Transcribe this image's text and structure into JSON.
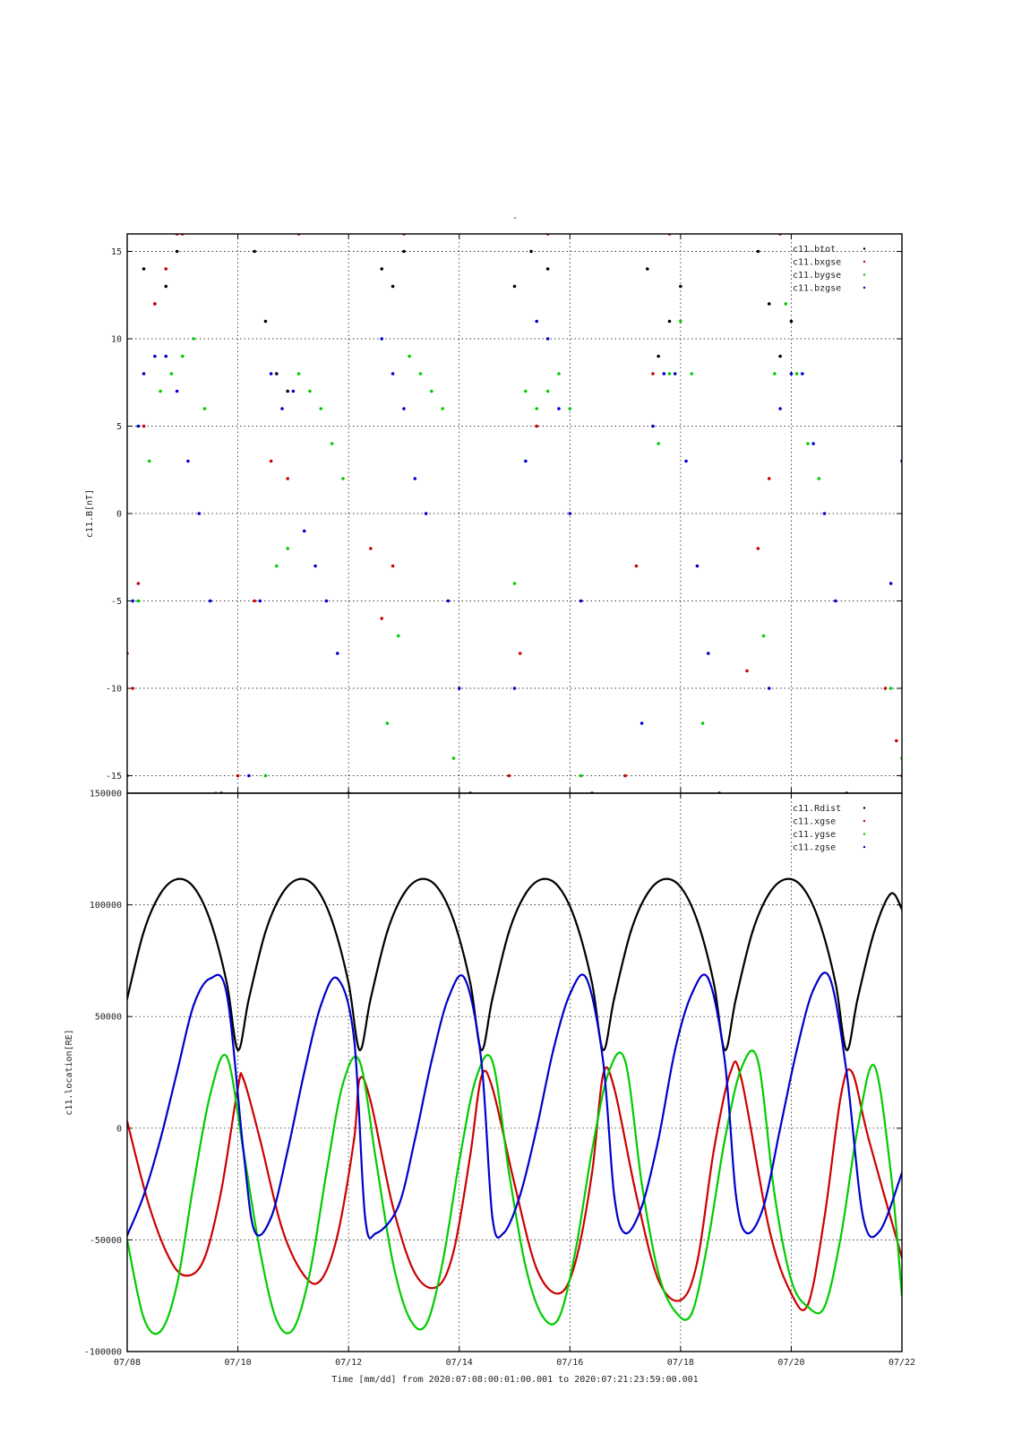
{
  "title": "-",
  "x_axis": {
    "label": "Time [mm/dd]  from 2020:07:08:00:01:00.001  to  2020:07:21:23:59:00.001",
    "tick_labels": [
      "07/08",
      "07/10",
      "07/12",
      "07/14",
      "07/16",
      "07/18",
      "07/20",
      "07/22"
    ],
    "tick_days": [
      0,
      2,
      4,
      6,
      8,
      10,
      12,
      14
    ],
    "range_days": [
      0,
      14
    ]
  },
  "chart_data": [
    {
      "type": "scatter",
      "ylabel": "c11.B[nT]",
      "ylim": [
        -16,
        16
      ],
      "yticks": [
        15,
        10,
        5,
        0,
        -5,
        -10,
        -15
      ],
      "grid": true,
      "legend_position": "top-right",
      "x_units": "days since 2020-07-08 00:01",
      "series": [
        {
          "name": "c11.btot",
          "color": "#000000",
          "x": [
            0.3,
            0.5,
            0.7,
            0.9,
            2.3,
            2.5,
            2.7,
            2.9,
            4.6,
            4.8,
            5.0,
            7.0,
            7.3,
            7.6,
            9.4,
            9.6,
            9.8,
            10.0,
            11.4,
            11.6,
            11.8,
            12.0
          ],
          "y": [
            14,
            12,
            13,
            15,
            15,
            11,
            8,
            7,
            14,
            13,
            15,
            13,
            15,
            14,
            14,
            9,
            11,
            13,
            15,
            12,
            9,
            11
          ]
        },
        {
          "name": "c11.bxgse",
          "color": "#cc0000",
          "x": [
            0.0,
            0.1,
            0.2,
            0.3,
            0.5,
            0.7,
            0.9,
            1.0,
            2.0,
            2.3,
            2.6,
            2.9,
            3.1,
            4.4,
            4.6,
            4.8,
            5.0,
            6.9,
            7.1,
            7.4,
            7.6,
            9.0,
            9.2,
            9.5,
            9.8,
            11.2,
            11.4,
            11.6,
            11.8,
            13.7,
            13.9,
            14.0
          ],
          "y": [
            -8,
            -10,
            -4,
            5,
            12,
            14,
            16,
            16,
            -15,
            -5,
            3,
            2,
            16,
            -2,
            -6,
            -3,
            16,
            -15,
            -8,
            5,
            16,
            -15,
            -3,
            8,
            16,
            -9,
            -2,
            2,
            16,
            -10,
            -13,
            -15
          ]
        },
        {
          "name": "c11.bygse",
          "color": "#00cc00",
          "x": [
            0.2,
            0.4,
            0.6,
            0.8,
            1.0,
            1.2,
            1.4,
            1.6,
            2.5,
            2.7,
            2.9,
            3.1,
            3.3,
            3.5,
            3.7,
            3.9,
            4.7,
            4.9,
            5.1,
            5.3,
            5.5,
            5.7,
            5.9,
            7.0,
            7.2,
            7.4,
            7.6,
            7.8,
            8.0,
            8.2,
            9.6,
            9.8,
            10.0,
            10.2,
            10.4,
            11.5,
            11.7,
            11.9,
            12.1,
            12.3,
            12.5,
            13.8,
            14.0
          ],
          "y": [
            -5,
            3,
            7,
            8,
            9,
            10,
            6,
            -16,
            -15,
            -3,
            -2,
            8,
            7,
            6,
            4,
            2,
            -12,
            -7,
            9,
            8,
            7,
            6,
            -14,
            -4,
            7,
            6,
            7,
            8,
            6,
            -15,
            4,
            8,
            11,
            8,
            -12,
            -7,
            8,
            12,
            8,
            4,
            2,
            -10,
            -14
          ]
        },
        {
          "name": "c11.bzgse",
          "color": "#0000cc",
          "x": [
            0.0,
            0.1,
            0.2,
            0.3,
            0.5,
            0.7,
            0.9,
            1.1,
            1.3,
            1.5,
            1.7,
            2.2,
            2.4,
            2.6,
            2.8,
            3.0,
            3.2,
            3.4,
            3.6,
            3.8,
            4.0,
            4.6,
            4.8,
            5.0,
            5.2,
            5.4,
            5.8,
            6.0,
            6.2,
            7.0,
            7.2,
            7.4,
            7.6,
            7.8,
            8.0,
            8.2,
            8.4,
            9.3,
            9.5,
            9.7,
            9.9,
            10.1,
            10.3,
            10.5,
            10.7,
            11.6,
            11.8,
            12.0,
            12.2,
            12.4,
            12.6,
            12.8,
            13.0,
            13.8,
            14.0
          ],
          "y": [
            -15,
            -5,
            5,
            8,
            9,
            9,
            7,
            3,
            0,
            -5,
            -16,
            -15,
            -5,
            8,
            6,
            7,
            -1,
            -3,
            -5,
            -8,
            -16,
            10,
            8,
            6,
            2,
            0,
            -5,
            -10,
            -16,
            -10,
            3,
            11,
            10,
            6,
            0,
            -5,
            -16,
            -12,
            5,
            8,
            8,
            3,
            -3,
            -8,
            -16,
            -10,
            6,
            8,
            8,
            4,
            0,
            -5,
            -16,
            -4,
            3
          ]
        }
      ]
    },
    {
      "type": "line",
      "ylabel": "c11.location[RE]",
      "ylim": [
        -100000,
        150000
      ],
      "yticks": [
        150000,
        100000,
        50000,
        0,
        -50000,
        -100000
      ],
      "grid": true,
      "legend_position": "top-right",
      "x_units": "days since 2020-07-08 00:01",
      "series": [
        {
          "name": "c11.Rdist",
          "color": "#000000",
          "x": [
            0.0,
            0.3,
            0.6,
            0.9,
            1.2,
            1.5,
            1.8,
            2.0,
            2.2,
            2.5,
            2.8,
            3.1,
            3.4,
            3.7,
            4.0,
            4.2,
            4.4,
            4.7,
            5.0,
            5.3,
            5.6,
            5.9,
            6.2,
            6.4,
            6.6,
            6.9,
            7.2,
            7.5,
            7.8,
            8.1,
            8.4,
            8.6,
            8.8,
            9.1,
            9.4,
            9.7,
            10.0,
            10.3,
            10.6,
            10.8,
            11.0,
            11.3,
            11.6,
            11.9,
            12.2,
            12.5,
            12.8,
            13.0,
            13.2,
            13.5,
            13.8,
            14.0
          ],
          "y": [
            58000,
            88000,
            105000,
            111500,
            108000,
            93000,
            65000,
            35000,
            58000,
            88000,
            105000,
            111500,
            108000,
            93000,
            65000,
            35000,
            58000,
            88000,
            105000,
            111500,
            108000,
            93000,
            65000,
            35000,
            58000,
            88000,
            105000,
            111500,
            108000,
            93000,
            65000,
            35000,
            58000,
            88000,
            105000,
            111500,
            108000,
            93000,
            65000,
            35000,
            58000,
            88000,
            105000,
            111500,
            108000,
            93000,
            65000,
            35000,
            58000,
            88000,
            105000,
            98000
          ]
        },
        {
          "name": "c11.xgse",
          "color": "#cc0000",
          "x": [
            0.0,
            0.4,
            0.8,
            1.1,
            1.4,
            1.7,
            2.0,
            2.1,
            2.4,
            2.8,
            3.2,
            3.5,
            3.8,
            4.1,
            4.2,
            4.4,
            4.8,
            5.2,
            5.6,
            5.9,
            6.2,
            6.4,
            6.6,
            7.0,
            7.4,
            7.8,
            8.1,
            8.4,
            8.6,
            8.8,
            9.2,
            9.6,
            10.0,
            10.3,
            10.6,
            10.9,
            11.1,
            11.6,
            12.0,
            12.3,
            12.6,
            12.9,
            13.1,
            13.4,
            14.0
          ],
          "y": [
            3000,
            -35000,
            -60000,
            -66000,
            -58000,
            -28000,
            18000,
            22000,
            -5000,
            -45000,
            -66000,
            -68000,
            -48000,
            -5000,
            22000,
            12000,
            -35000,
            -65000,
            -71000,
            -55000,
            -12000,
            23000,
            18000,
            -25000,
            -63000,
            -74000,
            -60000,
            -20000,
            24000,
            18000,
            -30000,
            -68000,
            -77000,
            -60000,
            -10000,
            25000,
            22000,
            -45000,
            -74000,
            -79000,
            -40000,
            15000,
            25000,
            -5000,
            -58000
          ]
        },
        {
          "name": "c11.ygse",
          "color": "#00cc00",
          "x": [
            0.0,
            0.3,
            0.6,
            0.9,
            1.2,
            1.5,
            1.8,
            2.1,
            2.4,
            2.7,
            3.0,
            3.3,
            3.6,
            3.9,
            4.2,
            4.5,
            4.8,
            5.1,
            5.4,
            5.7,
            6.0,
            6.3,
            6.6,
            6.9,
            7.2,
            7.5,
            7.8,
            8.1,
            8.4,
            8.7,
            9.0,
            9.3,
            9.6,
            9.9,
            10.2,
            10.5,
            10.8,
            11.1,
            11.4,
            11.7,
            12.0,
            12.3,
            12.6,
            12.9,
            13.2,
            13.5,
            13.8,
            14.0
          ],
          "y": [
            -50000,
            -85000,
            -91000,
            -70000,
            -25000,
            15000,
            32000,
            -10000,
            -55000,
            -86000,
            -90000,
            -65000,
            -20000,
            20000,
            30000,
            -15000,
            -60000,
            -85000,
            -88000,
            -60000,
            -15000,
            22000,
            30000,
            -20000,
            -62000,
            -84000,
            -85000,
            -55000,
            -10000,
            25000,
            30000,
            -25000,
            -65000,
            -82000,
            -83000,
            -50000,
            -5000,
            27000,
            30000,
            -30000,
            -68000,
            -80000,
            -80000,
            -48000,
            0,
            28000,
            -20000,
            -75000
          ]
        },
        {
          "name": "c11.zgse",
          "color": "#0000cc",
          "x": [
            0.0,
            0.3,
            0.6,
            0.9,
            1.2,
            1.5,
            1.8,
            2.1,
            2.3,
            2.6,
            2.9,
            3.2,
            3.5,
            3.8,
            4.1,
            4.3,
            4.5,
            4.9,
            5.2,
            5.5,
            5.8,
            6.1,
            6.4,
            6.6,
            6.8,
            7.1,
            7.4,
            7.7,
            8.0,
            8.3,
            8.6,
            8.8,
            9.0,
            9.3,
            9.6,
            9.9,
            10.2,
            10.5,
            10.8,
            11.0,
            11.2,
            11.5,
            11.8,
            12.1,
            12.4,
            12.7,
            13.0,
            13.3,
            13.6,
            14.0
          ],
          "y": [
            -48000,
            -30000,
            -5000,
            25000,
            55000,
            67000,
            60000,
            -10000,
            -46000,
            -40000,
            -10000,
            25000,
            55000,
            67000,
            40000,
            -40000,
            -47000,
            -35000,
            -5000,
            30000,
            58000,
            67000,
            30000,
            -40000,
            -47000,
            -30000,
            0,
            35000,
            60000,
            67000,
            30000,
            -30000,
            -47000,
            -35000,
            -5000,
            35000,
            60000,
            67000,
            30000,
            -30000,
            -47000,
            -35000,
            0,
            35000,
            62000,
            67000,
            25000,
            -40000,
            -46000,
            -20000
          ]
        }
      ]
    }
  ]
}
